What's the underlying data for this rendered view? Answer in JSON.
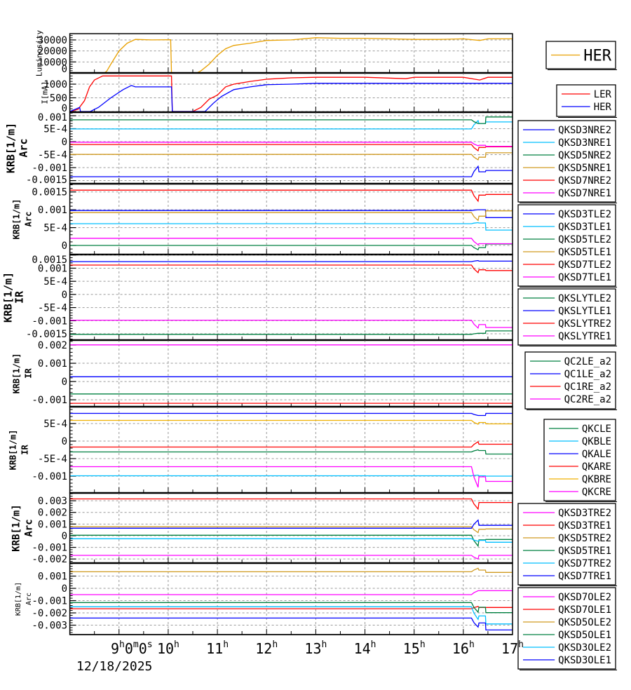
{
  "chart_data": {
    "type": "line",
    "x_ticks": [
      "9h0m0s",
      "10h",
      "11h",
      "12h",
      "13h",
      "14h",
      "15h",
      "16h",
      "17h"
    ],
    "x_range": [
      "8:00",
      "17:00"
    ],
    "date": "12/18/2025",
    "grid": true,
    "legend_placement": "right",
    "panels": [
      {
        "ylabel": [
          "Luminosity"
        ],
        "ylim": [
          0,
          35700
        ],
        "yticks": [
          "0",
          "10000",
          "20000",
          "30000"
        ],
        "series": [
          {
            "name": "HER",
            "color": "#e8a000",
            "points": [
              [
                "8:00",
                0
              ],
              [
                "8:42",
                0
              ],
              [
                "8:45",
                1500
              ],
              [
                "8:50",
                8000
              ],
              [
                "9:00",
                20000
              ],
              [
                "9:10",
                27000
              ],
              [
                "9:20",
                30500
              ],
              [
                "9:40",
                30000
              ],
              [
                "10:03",
                30200
              ],
              [
                "10:04",
                0
              ],
              [
                "10:35",
                0
              ],
              [
                "10:40",
                2000
              ],
              [
                "10:50",
                8000
              ],
              [
                "11:00",
                16000
              ],
              [
                "11:10",
                22000
              ],
              [
                "11:20",
                25000
              ],
              [
                "11:40",
                27000
              ],
              [
                "12:00",
                29500
              ],
              [
                "12:30",
                30000
              ],
              [
                "13:00",
                32000
              ],
              [
                "13:30",
                31500
              ],
              [
                "14:00",
                31500
              ],
              [
                "14:30",
                31000
              ],
              [
                "15:00",
                30500
              ],
              [
                "15:30",
                30500
              ],
              [
                "16:00",
                31000
              ],
              [
                "16:20",
                29500
              ],
              [
                "16:30",
                31000
              ],
              [
                "17:00",
                31000
              ]
            ]
          }
        ]
      },
      {
        "ylabel": [
          "I[mA]"
        ],
        "ylim": [
          -26,
          1410
        ],
        "yticks": [
          "0",
          "500",
          "1000"
        ],
        "series": [
          {
            "name": "LER",
            "color": "#ff0000",
            "points": [
              [
                "8:00",
                0
              ],
              [
                "8:10",
                80
              ],
              [
                "8:18",
                400
              ],
              [
                "8:24",
                900
              ],
              [
                "8:30",
                1150
              ],
              [
                "8:40",
                1300
              ],
              [
                "10:04",
                1300
              ],
              [
                "10:05",
                0
              ],
              [
                "10:30",
                0
              ],
              [
                "10:40",
                150
              ],
              [
                "10:50",
                450
              ],
              [
                "11:00",
                600
              ],
              [
                "11:10",
                900
              ],
              [
                "11:20",
                1000
              ],
              [
                "11:40",
                1100
              ],
              [
                "12:00",
                1180
              ],
              [
                "12:30",
                1230
              ],
              [
                "13:00",
                1250
              ],
              [
                "14:00",
                1250
              ],
              [
                "14:50",
                1200
              ],
              [
                "15:00",
                1250
              ],
              [
                "16:00",
                1250
              ],
              [
                "16:20",
                1150
              ],
              [
                "16:30",
                1250
              ],
              [
                "17:00",
                1250
              ]
            ]
          },
          {
            "name": "HER",
            "color": "#0000ff",
            "points": [
              [
                "8:00",
                0
              ],
              [
                "8:12",
                150
              ],
              [
                "8:13",
                0
              ],
              [
                "8:25",
                0
              ],
              [
                "8:35",
                150
              ],
              [
                "8:50",
                500
              ],
              [
                "9:05",
                800
              ],
              [
                "9:15",
                950
              ],
              [
                "9:20",
                900
              ],
              [
                "10:04",
                900
              ],
              [
                "10:05",
                0
              ],
              [
                "10:45",
                0
              ],
              [
                "10:55",
                300
              ],
              [
                "11:05",
                550
              ],
              [
                "11:20",
                800
              ],
              [
                "11:40",
                900
              ],
              [
                "12:00",
                980
              ],
              [
                "12:30",
                1000
              ],
              [
                "13:00",
                1030
              ],
              [
                "17:00",
                1030
              ]
            ]
          }
        ]
      },
      {
        "ylabel": [
          "KRB[1/m]",
          "Arc"
        ],
        "ylim": [
          -0.00162,
          0.001135
        ],
        "yticks": [
          "0.001",
          "5E-4",
          "0",
          "-5E-4",
          "-0.001",
          "-0.0015"
        ],
        "series": [
          {
            "name": "QKSD3NRE2",
            "color": "#0000ff",
            "base": -0.00135,
            "peak": -0.00095,
            "mid": -0.00116,
            "final": -0.00111
          },
          {
            "name": "QKSD3NRE1",
            "color": "#00bfff",
            "base": 0.00049,
            "peak": 0.00081,
            "mid": 0.0007,
            "final": 0.00076
          },
          {
            "name": "QKSD5NRE2",
            "color": "#008040",
            "base": 0.00084,
            "peak": 0.0007,
            "mid": 0.0007,
            "final": 0.00095
          },
          {
            "name": "QKSD5NRE1",
            "color": "#d09a20",
            "base": -0.00049,
            "peak": -0.0007,
            "mid": -0.0006,
            "final": -0.00043
          },
          {
            "name": "QKSD7NRE2",
            "color": "#ff0000",
            "base": -0.00011,
            "peak": -0.00035,
            "mid": -0.00022,
            "final": -0.0002
          },
          {
            "name": "QKSD7NRE1",
            "color": "#ff00ff",
            "base": -2e-05,
            "peak": -0.00016,
            "mid": -0.00014,
            "final": -0.00018
          }
        ]
      },
      {
        "ylabel": [
          "KRB[1/m]",
          "Arc"
        ],
        "ylim": [
          -0.000255,
          0.00173
        ],
        "yticks": [
          "0.0015",
          "0.001",
          "5E-4",
          "0"
        ],
        "series": [
          {
            "name": "QKSD3TLE2",
            "color": "#0000ff",
            "base": 0.00098,
            "peak": 0.001,
            "mid": 0.001,
            "final": 0.00078
          },
          {
            "name": "QKSD3TLE1",
            "color": "#00bfff",
            "base": 0.00061,
            "peak": 0.00064,
            "mid": 0.00063,
            "final": 0.00043
          },
          {
            "name": "QKSD5TLE2",
            "color": "#008040",
            "base": 0,
            "peak": -0.00012,
            "mid": -6e-05,
            "final": 4e-05
          },
          {
            "name": "QKSD5TLE1",
            "color": "#d09a20",
            "base": 0.00092,
            "peak": 0.0007,
            "mid": 0.00082,
            "final": 0.00097
          },
          {
            "name": "QKSD7TLE2",
            "color": "#ff0000",
            "base": 0.00155,
            "peak": 0.00124,
            "mid": 0.00141,
            "final": 0.00143
          },
          {
            "name": "QKSD7TLE1",
            "color": "#ff00ff",
            "base": 0.0002,
            "peak": 2e-05,
            "mid": 5e-05,
            "final": 5e-05
          }
        ]
      },
      {
        "ylabel": [
          "KRB[1/m]",
          "IR"
        ],
        "ylim": [
          -0.00174,
          0.00152
        ],
        "yticks": [
          "0.0015",
          "0.001",
          "5E-4",
          "0",
          "-5E-4",
          "-0.001",
          "-0.0015"
        ],
        "series": [
          {
            "name": "QKSLYTLE2",
            "color": "#008040",
            "base": -0.00152,
            "peak": -0.00148,
            "mid": -0.00148,
            "final": -0.00139
          },
          {
            "name": "QKSLYTLE1",
            "color": "#0000ff",
            "base": 0.00125,
            "peak": 0.00129,
            "mid": 0.00127,
            "final": 0.00127
          },
          {
            "name": "QKSLYTRE2",
            "color": "#ff0000",
            "base": 0.00112,
            "peak": 0.00083,
            "mid": 0.00094,
            "final": 0.00091
          },
          {
            "name": "QKSLYTRE1",
            "color": "#ff00ff",
            "base": -0.00098,
            "peak": -0.00128,
            "mid": -0.00115,
            "final": -0.00126
          }
        ]
      },
      {
        "ylabel": [
          "KRB[1/m]",
          "IR"
        ],
        "ylim": [
          -0.00138,
          0.00227
        ],
        "yticks": [
          "0.002",
          "0.001",
          "0",
          "-0.001"
        ],
        "series": [
          {
            "name": "QC2LE_a2",
            "color": "#008040",
            "base": -0.00068
          },
          {
            "name": "QC1LE_a2",
            "color": "#0000ff",
            "base": 0.00026
          },
          {
            "name": "QC1RE_a2",
            "color": "#ff0000",
            "base": -0.00119
          },
          {
            "name": "QC2RE_a2",
            "color": "#ff00ff",
            "base": 0.00201
          }
        ]
      },
      {
        "ylabel": [
          "KRB[1/m]",
          "IR"
        ],
        "ylim": [
          -0.00148,
          0.00098
        ],
        "yticks": [
          "5E-4",
          "0",
          "-5E-4",
          "-0.001"
        ],
        "series": [
          {
            "name": "QKCLE",
            "color": "#008040",
            "base": -0.00031,
            "peak": -0.00025,
            "mid": -0.00027,
            "final": -0.00037
          },
          {
            "name": "QKBLE",
            "color": "#00bfff",
            "base": -0.00099,
            "peak": -0.00097,
            "mid": -0.00099,
            "final": -0.001
          },
          {
            "name": "QKALE",
            "color": "#0000ff",
            "base": 0.00079,
            "peak": 0.00073,
            "mid": 0.00073,
            "final": 0.00079
          },
          {
            "name": "QKARE",
            "color": "#ff0000",
            "base": -0.00017,
            "peak": -2e-05,
            "mid": -9e-05,
            "final": -9e-05
          },
          {
            "name": "QKBRE",
            "color": "#f0b000",
            "base": 0.00059,
            "peak": 0.00048,
            "mid": 0.00053,
            "final": 0.00049
          },
          {
            "name": "QKCRE",
            "color": "#ff00ff",
            "base": -0.00073,
            "peak": -0.00132,
            "mid": -0.00102,
            "final": -0.00115
          }
        ]
      },
      {
        "ylabel": [
          "KRB[1/m]",
          "Arc"
        ],
        "ylim": [
          -0.00235,
          0.00367
        ],
        "yticks": [
          "0.003",
          "0.002",
          "0.001",
          "0",
          "-0.001",
          "-0.002"
        ],
        "series": [
          {
            "name": "QKSD3TRE2",
            "color": "#ff00ff",
            "base": -0.00169,
            "peak": -0.002,
            "mid": -0.00169,
            "final": -0.00169
          },
          {
            "name": "QKSD3TRE1",
            "color": "#ff0000",
            "base": 0.00316,
            "peak": 0.00229,
            "mid": 0.00285,
            "final": 0.00285
          },
          {
            "name": "QKSD5TRE2",
            "color": "#d09a20",
            "base": 0.00077,
            "peak": 0.00026,
            "mid": 0.00056,
            "final": 0.00058
          },
          {
            "name": "QKSD5TRE1",
            "color": "#008040",
            "base": 4e-05,
            "peak": -0.00089,
            "mid": -0.00036,
            "final": -0.00032
          },
          {
            "name": "QKSD7TRE2",
            "color": "#00bfff",
            "base": -0.00026,
            "peak": -0.00048,
            "mid": -0.0004,
            "final": -0.00056
          },
          {
            "name": "QKSD7TRE1",
            "color": "#0000ff",
            "base": 0.00064,
            "peak": 0.00134,
            "mid": 0.00089,
            "final": 0.00089
          }
        ]
      },
      {
        "ylabel": [
          "KRB[1/m]",
          "Arc"
        ],
        "ylim": [
          -0.00377,
          0.00206
        ],
        "yticks": [
          "0.001",
          "0",
          "-0.001",
          "-0.002",
          "-0.003"
        ],
        "series": [
          {
            "name": "QKSD7OLE2",
            "color": "#ff00ff",
            "base": -0.00051,
            "peak": -0.00019,
            "mid": -0.00019,
            "final": -0.00019
          },
          {
            "name": "QKSD7OLE1",
            "color": "#ff0000",
            "base": -0.00166,
            "peak": -0.00148,
            "mid": -0.00156,
            "final": -0.00156
          },
          {
            "name": "QKSD5OLE2",
            "color": "#d09a20",
            "base": 0.00135,
            "peak": 0.00164,
            "mid": 0.00149,
            "final": 0.0013
          },
          {
            "name": "QKSD5OLE1",
            "color": "#008040",
            "base": -0.00116,
            "peak": -0.00194,
            "mid": -0.00154,
            "final": -0.00198
          },
          {
            "name": "QKSD3OLE2",
            "color": "#00bfff",
            "base": -0.0015,
            "peak": -0.00253,
            "mid": -0.00225,
            "final": -0.0029
          },
          {
            "name": "QKSD3OLE1",
            "color": "#0000ff",
            "base": -0.00242,
            "peak": -0.00316,
            "mid": -0.00282,
            "final": -0.00339
          }
        ]
      }
    ]
  }
}
